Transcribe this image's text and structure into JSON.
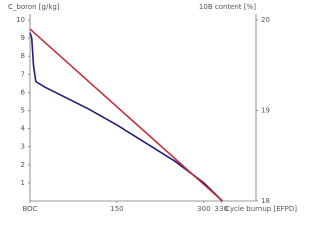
{
  "chart_data": {
    "type": "line",
    "y_label": "C_boron [g/kg]",
    "y2_label": "10B content [%]",
    "x_label": "Cycle burnup [EFPD]",
    "xlim": [
      0,
      390
    ],
    "xticks": [
      {
        "value": 0,
        "label": "BOC"
      },
      150,
      300,
      330
    ],
    "ylim": [
      0,
      10
    ],
    "yticks": [
      1,
      2,
      3,
      4,
      5,
      6,
      7,
      8,
      9,
      10
    ],
    "y2lim": [
      18,
      20
    ],
    "y2ticks": [
      18,
      19,
      20
    ],
    "series": [
      {
        "color": "#1f1f7a",
        "x": [
          0,
          3,
          6,
          10,
          25,
          50,
          100,
          150,
          200,
          250,
          300,
          332
        ],
        "values": [
          9.3,
          9.0,
          7.5,
          6.6,
          6.3,
          5.9,
          5.1,
          4.2,
          3.2,
          2.2,
          1.0,
          0
        ]
      },
      {
        "color": "#c0303c",
        "axis": "y2",
        "x": [
          0,
          332
        ],
        "values": [
          19.9,
          18
        ]
      }
    ]
  }
}
